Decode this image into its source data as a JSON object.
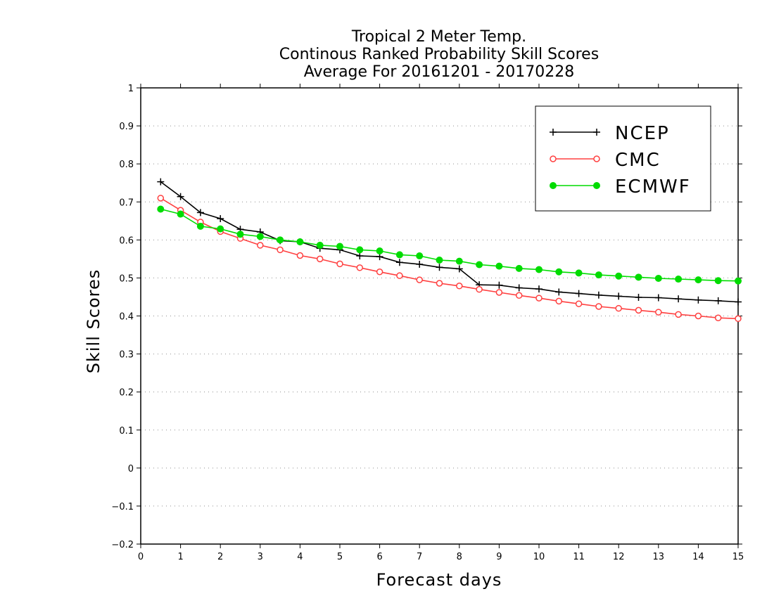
{
  "chart_data": {
    "type": "line",
    "title": [
      "Tropical 2 Meter Temp.",
      "Continous Ranked Probability Skill Scores",
      "Average For 20161201 - 20170228"
    ],
    "xlabel": "Forecast days",
    "ylabel": "Skill Scores",
    "xlim": [
      0,
      15
    ],
    "ylim": [
      -0.2,
      1
    ],
    "xticks": [
      0,
      1,
      2,
      3,
      4,
      5,
      6,
      7,
      8,
      9,
      10,
      11,
      12,
      13,
      14,
      15
    ],
    "yticks": [
      -0.2,
      -0.1,
      0,
      0.1,
      0.2,
      0.3,
      0.4,
      0.5,
      0.6,
      0.7,
      0.8,
      0.9,
      1
    ],
    "ytick_labels": [
      "−0.2",
      "−0.1",
      "0",
      "0.1",
      "0.2",
      "0.3",
      "0.4",
      "0.5",
      "0.6",
      "0.7",
      "0.8",
      "0.9",
      "1"
    ],
    "grid": "horizontal-dotted",
    "legend_position": "top-right",
    "x": [
      0.5,
      1,
      1.5,
      2,
      2.5,
      3,
      3.5,
      4,
      4.5,
      5,
      5.5,
      6,
      6.5,
      7,
      7.5,
      8,
      8.5,
      9,
      9.5,
      10,
      10.5,
      11,
      11.5,
      12,
      12.5,
      13,
      13.5,
      14,
      14.5,
      15
    ],
    "series": [
      {
        "name": "NCEP",
        "color": "#000000",
        "marker": "plus",
        "values": [
          0.753,
          0.714,
          0.672,
          0.656,
          0.628,
          0.621,
          0.598,
          0.595,
          0.578,
          0.574,
          0.558,
          0.556,
          0.541,
          0.536,
          0.528,
          0.524,
          0.482,
          0.481,
          0.474,
          0.471,
          0.463,
          0.459,
          0.455,
          0.452,
          0.449,
          0.448,
          0.445,
          0.442,
          0.44,
          0.437
        ]
      },
      {
        "name": "CMC",
        "color": "#ff4040",
        "marker": "open-circle",
        "values": [
          0.71,
          0.678,
          0.647,
          0.622,
          0.604,
          0.586,
          0.574,
          0.559,
          0.55,
          0.537,
          0.527,
          0.516,
          0.506,
          0.495,
          0.486,
          0.479,
          0.47,
          0.462,
          0.454,
          0.447,
          0.439,
          0.432,
          0.425,
          0.42,
          0.415,
          0.41,
          0.404,
          0.4,
          0.395,
          0.393
        ]
      },
      {
        "name": "ECMWF",
        "color": "#00dc00",
        "marker": "filled-circle",
        "values": [
          0.681,
          0.668,
          0.636,
          0.629,
          0.615,
          0.609,
          0.6,
          0.595,
          0.586,
          0.583,
          0.574,
          0.571,
          0.561,
          0.558,
          0.547,
          0.544,
          0.535,
          0.531,
          0.525,
          0.522,
          0.516,
          0.513,
          0.508,
          0.505,
          0.502,
          0.499,
          0.497,
          0.495,
          0.493,
          0.492
        ]
      }
    ]
  }
}
